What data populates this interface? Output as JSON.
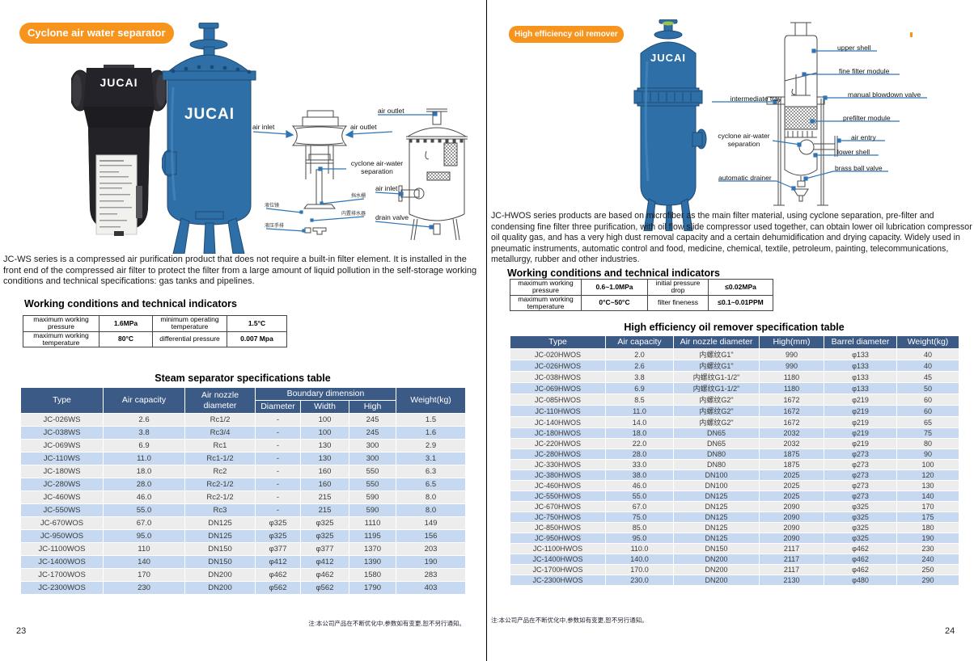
{
  "brand": "JUCAI",
  "colors": {
    "accent_orange": "#F7941D",
    "table_header_blue": "#3C5A86",
    "row_gray": "#EDEDED",
    "row_blue": "#C6D9F0",
    "leader_line_blue": "#2E75B6",
    "vessel_blue": "#2F6FA8"
  },
  "left_page": {
    "badge": "Cyclone air water separator",
    "diagram_labels": {
      "air_inlet": "air inlet",
      "air_outlet": "air outlet",
      "cyclone_line1": "cyclone air-water",
      "cyclone_line2": "separation",
      "water_baffle": "挡水栅",
      "liquid_level_gauge": "液位镜",
      "built_in_drainer": "内置排水器",
      "hydraulic_manual_drain": "液压手排",
      "vessel_air_outlet": "air outlet",
      "vessel_air_inlet": "air inlet",
      "vessel_drain_valve": "drain valve"
    },
    "description": "JC-WS series is a compressed air purification product that does not require a built-in filter element. It is installed in the front end of the compressed air filter to protect the filter from a large amount of liquid pollution in the self-storage working conditions and technical specifications: gas tanks and pipelines.",
    "working_heading": "Working conditions and technical indicators",
    "working_rows": [
      [
        "maximum working pressure",
        "1.6MPa",
        "minimum operating temperature",
        "1.5°C"
      ],
      [
        "maximum working temperature",
        "80°C",
        "differential pressure",
        "0.007 Mpa"
      ]
    ],
    "spec_title": "Steam separator specifications table",
    "spec_headers": {
      "type": "Type",
      "air_capacity": "Air capacity",
      "nozzle": "Air nozzle diameter",
      "boundary": "Boundary dimension",
      "diameter": "Diameter",
      "width": "Width",
      "high": "High",
      "weight": "Weight(kg)"
    },
    "spec_rows": [
      [
        "JC-026WS",
        "2.6",
        "Rc1/2",
        "-",
        "100",
        "245",
        "1.5"
      ],
      [
        "JC-038WS",
        "3.8",
        "Rc3/4",
        "-",
        "100",
        "245",
        "1.6"
      ],
      [
        "JC-069WS",
        "6.9",
        "Rc1",
        "-",
        "130",
        "300",
        "2.9"
      ],
      [
        "JC-110WS",
        "11.0",
        "Rc1-1/2",
        "-",
        "130",
        "300",
        "3.1"
      ],
      [
        "JC-180WS",
        "18.0",
        "Rc2",
        "-",
        "160",
        "550",
        "6.3"
      ],
      [
        "JC-280WS",
        "28.0",
        "Rc2-1/2",
        "-",
        "160",
        "550",
        "6.5"
      ],
      [
        "JC-460WS",
        "46.0",
        "Rc2-1/2",
        "-",
        "215",
        "590",
        "8.0"
      ],
      [
        "JC-550WS",
        "55.0",
        "Rc3",
        "-",
        "215",
        "590",
        "8.0"
      ],
      [
        "JC-670WOS",
        "67.0",
        "DN125",
        "φ325",
        "φ325",
        "1110",
        "149"
      ],
      [
        "JC-950WOS",
        "95.0",
        "DN125",
        "φ325",
        "φ325",
        "1195",
        "156"
      ],
      [
        "JC-1100WOS",
        "110",
        "DN150",
        "φ377",
        "φ377",
        "1370",
        "203"
      ],
      [
        "JC-1400WOS",
        "140",
        "DN150",
        "φ412",
        "φ412",
        "1390",
        "190"
      ],
      [
        "JC-1700WOS",
        "170",
        "DN200",
        "φ462",
        "φ462",
        "1580",
        "283"
      ],
      [
        "JC-2300WOS",
        "230",
        "DN200",
        "φ562",
        "φ562",
        "1790",
        "403"
      ]
    ],
    "note": "注:本公司产品在不断优化中,参数如有变更,恕不另行通知。",
    "page_number": "23"
  },
  "right_page": {
    "badge": "High efficiency oil remover",
    "diagram_labels": {
      "upper_shell": "upper shell",
      "fine_filter_module": "fine filter module",
      "intermediate_tray": "intermediate tray",
      "manual_blowdown_valve": "manual blowdown valve",
      "prefilter_module": "prefilter module",
      "cyclone_line1": "cyclone air-water",
      "cyclone_line2": "separation",
      "air_entry": "air entry",
      "lower_shell": "lower shell",
      "brass_ball_valve": "brass ball valve",
      "automatic_drainer": "automatic drainer"
    },
    "description": "JC-HWOS series products are based on microfiber as the main filter material, using cyclone separation, pre-filter and condensing fine filter three purification, with oil flow slide compressor used together, can obtain lower oil lubrication compressor oil quality gas, and has a very high dust removal capacity and a certain dehumidification and drying capacity. Widely used in pneumatic instruments, automatic control and food, medicine, chemical, textile, petroleum, painting, telecommunications, metallurgy, rubber and other industries.",
    "working_heading": "Working conditions and technical indicators",
    "working_rows": [
      [
        "maximum working pressure",
        "0.6~1.0MPa",
        "initial pressure drop",
        "≤0.02MPa"
      ],
      [
        "maximum working temperature",
        "0°C~50°C",
        "filter fineness",
        "≤0.1~0.01PPM"
      ]
    ],
    "spec_title": "High efficiency oil remover specification table",
    "spec_headers": [
      "Type",
      "Air capacity",
      "Air nozzle diameter",
      "High(mm)",
      "Barrel diameter",
      "Weight(kg)"
    ],
    "spec_rows": [
      [
        "JC-020HWOS",
        "2.0",
        "内螺纹G1\"",
        "990",
        "φ133",
        "40"
      ],
      [
        "JC-026HWOS",
        "2.6",
        "内螺纹G1\"",
        "990",
        "φ133",
        "40"
      ],
      [
        "JC-038HWOS",
        "3.8",
        "内螺纹G1-1/2\"",
        "1180",
        "φ133",
        "45"
      ],
      [
        "JC-069HWOS",
        "6.9",
        "内螺纹G1-1/2\"",
        "1180",
        "φ133",
        "50"
      ],
      [
        "JC-085HWOS",
        "8.5",
        "内螺纹G2\"",
        "1672",
        "φ219",
        "60"
      ],
      [
        "JC-110HWOS",
        "11.0",
        "内螺纹G2\"",
        "1672",
        "φ219",
        "60"
      ],
      [
        "JC-140HWOS",
        "14.0",
        "内螺纹G2\"",
        "1672",
        "φ219",
        "65"
      ],
      [
        "JC-180HWOS",
        "18.0",
        "DN65",
        "2032",
        "φ219",
        "75"
      ],
      [
        "JC-220HWOS",
        "22.0",
        "DN65",
        "2032",
        "φ219",
        "80"
      ],
      [
        "JC-280HWOS",
        "28.0",
        "DN80",
        "1875",
        "φ273",
        "90"
      ],
      [
        "JC-330HWOS",
        "33.0",
        "DN80",
        "1875",
        "φ273",
        "100"
      ],
      [
        "JC-380HWOS",
        "38.0",
        "DN100",
        "2025",
        "φ273",
        "120"
      ],
      [
        "JC-460HWOS",
        "46.0",
        "DN100",
        "2025",
        "φ273",
        "130"
      ],
      [
        "JC-550HWOS",
        "55.0",
        "DN125",
        "2025",
        "φ273",
        "140"
      ],
      [
        "JC-670HWOS",
        "67.0",
        "DN125",
        "2090",
        "φ325",
        "170"
      ],
      [
        "JC-750HWOS",
        "75.0",
        "DN125",
        "2090",
        "φ325",
        "175"
      ],
      [
        "JC-850HWOS",
        "85.0",
        "DN125",
        "2090",
        "φ325",
        "180"
      ],
      [
        "JC-950HWOS",
        "95.0",
        "DN125",
        "2090",
        "φ325",
        "190"
      ],
      [
        "JC-1100HWOS",
        "110.0",
        "DN150",
        "2117",
        "φ462",
        "230"
      ],
      [
        "JC-1400HWOS",
        "140.0",
        "DN200",
        "2117",
        "φ462",
        "240"
      ],
      [
        "JC-1700HWOS",
        "170.0",
        "DN200",
        "2117",
        "φ462",
        "250"
      ],
      [
        "JC-2300HWOS",
        "230.0",
        "DN200",
        "2130",
        "φ480",
        "290"
      ]
    ],
    "note": "注:本公司产品在不断优化中,参数如有变更,恕不另行通知。",
    "page_number": "24"
  }
}
